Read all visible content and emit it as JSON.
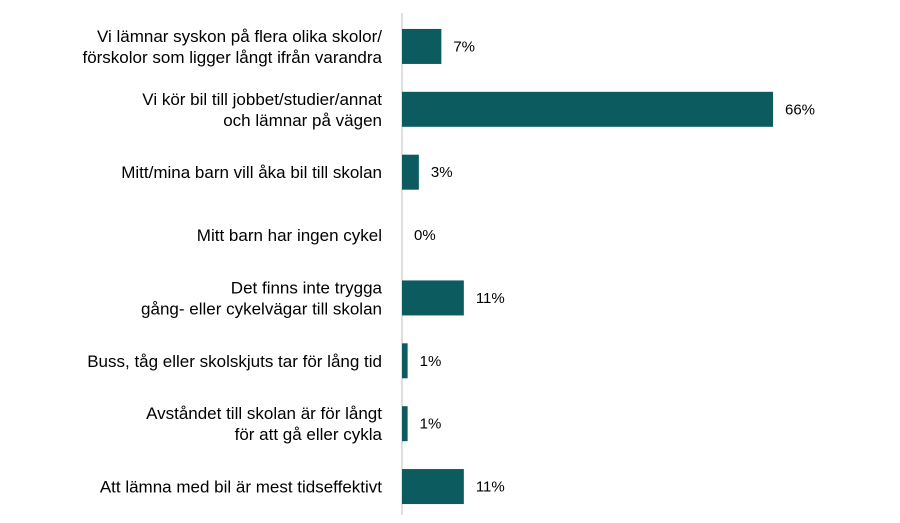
{
  "chart_data": {
    "type": "bar",
    "orientation": "horizontal",
    "categories": [
      [
        "Vi lämnar syskon på flera olika skolor/",
        "förskolor som ligger långt ifrån varandra"
      ],
      [
        "Vi kör bil till jobbet/studier/annat",
        "och lämnar på vägen"
      ],
      [
        "Mitt/mina barn vill åka bil till skolan"
      ],
      [
        "Mitt barn har ingen cykel"
      ],
      [
        "Det finns inte trygga",
        "gång- eller cykelvägar till skolan"
      ],
      [
        "Buss, tåg eller skolskjuts tar för lång tid"
      ],
      [
        "Avståndet till skolan är för långt",
        "för att gå eller cykla"
      ],
      [
        "Att lämna med bil är mest tidseffektivt"
      ]
    ],
    "values": [
      7,
      66,
      3,
      0,
      11,
      1,
      1,
      11
    ],
    "value_labels": [
      "7%",
      "66%",
      "3%",
      "0%",
      "11%",
      "1%",
      "1%",
      "11%"
    ],
    "unit": "%",
    "xlim": [
      0,
      66
    ],
    "bar_color": "#0c5b5e",
    "axis_color": "#bfbfbf",
    "grid": false,
    "legend": "none"
  }
}
